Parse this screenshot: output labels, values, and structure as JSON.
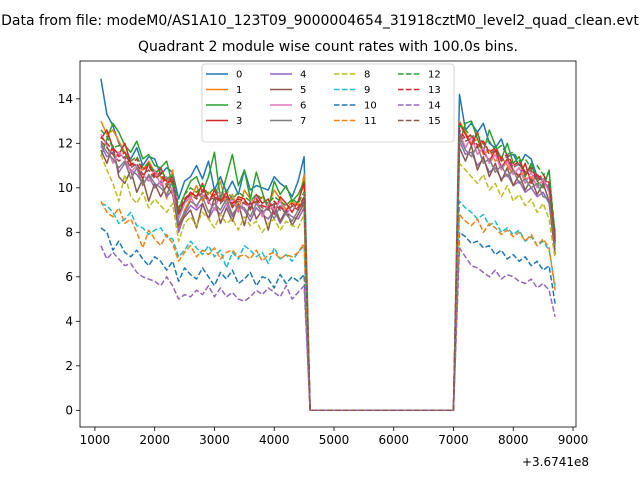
{
  "chart_data": {
    "type": "line",
    "suptitle": "Data from file: modeM0/AS1A10_123T09_9000004654_31918cztM0_level2_quad_clean.evt",
    "title": "Quadrant 2 module wise count rates with 100.0s bins.",
    "xlabel": "",
    "ylabel": "",
    "x_offset_label": "+3.6741e8",
    "xlim": [
      750,
      9050
    ],
    "ylim": [
      -0.75,
      15.7
    ],
    "xticks": [
      1000,
      2000,
      3000,
      4000,
      5000,
      6000,
      7000,
      8000,
      9000
    ],
    "yticks": [
      0,
      2,
      4,
      6,
      8,
      10,
      12,
      14
    ],
    "legend_position": "upper center",
    "gap": {
      "from": 4600,
      "to": 7000,
      "value": 0
    },
    "segment_a": {
      "start": 1100,
      "end": 4500,
      "step": 100
    },
    "segment_b": {
      "start": 7100,
      "end": 8700,
      "step": 100
    },
    "series": [
      {
        "name": "0",
        "color": "#1f77b4",
        "style": "solid",
        "a": [
          14.9,
          13.3,
          12.8,
          12.0,
          11.6,
          11.3,
          11.8,
          11.0,
          11.4,
          11.3,
          10.6,
          10.9,
          10.7,
          9.5,
          10.3,
          10.5,
          11.0,
          10.4,
          11.2,
          9.9,
          10.5,
          9.8,
          10.3,
          9.7,
          10.8,
          9.9,
          10.1,
          10.0,
          9.9,
          10.5,
          10.2,
          10.0,
          9.6,
          10.3,
          11.4
        ],
        "b": [
          14.2,
          12.6,
          12.9,
          12.5,
          12.9,
          12.0,
          11.8,
          12.2,
          11.4,
          11.5,
          11.0,
          11.5,
          11.3,
          10.5,
          10.3,
          10.0,
          8.0
        ]
      },
      {
        "name": "1",
        "color": "#ff7f0e",
        "style": "solid",
        "a": [
          13.0,
          12.4,
          12.6,
          12.1,
          11.6,
          11.1,
          11.0,
          10.8,
          11.2,
          10.7,
          10.5,
          9.5,
          10.8,
          8.1,
          9.0,
          9.5,
          10.1,
          9.4,
          9.8,
          9.6,
          10.3,
          9.2,
          9.7,
          9.0,
          9.9,
          9.5,
          9.3,
          9.6,
          9.2,
          9.9,
          9.5,
          9.0,
          9.4,
          9.2,
          10.6
        ],
        "b": [
          13.0,
          12.5,
          12.0,
          12.2,
          11.5,
          11.7,
          11.2,
          11.4,
          11.0,
          10.6,
          10.9,
          10.4,
          10.5,
          10.1,
          10.3,
          9.9,
          7.9
        ]
      },
      {
        "name": "2",
        "color": "#2ca02c",
        "style": "solid",
        "a": [
          11.4,
          12.2,
          12.9,
          12.5,
          11.9,
          11.6,
          12.1,
          11.3,
          11.5,
          11.0,
          10.9,
          11.2,
          10.1,
          9.0,
          9.7,
          10.3,
          10.5,
          9.8,
          10.5,
          11.6,
          9.5,
          10.5,
          11.5,
          10.1,
          10.8,
          9.5,
          10.7,
          9.8,
          9.0,
          10.3,
          9.7,
          10.1,
          9.4,
          9.7,
          10.3
        ],
        "b": [
          12.0,
          12.9,
          13.0,
          12.2,
          11.6,
          12.6,
          11.9,
          11.3,
          12.0,
          11.1,
          11.4,
          10.5,
          11.1,
          10.3,
          10.0,
          10.8,
          7.5
        ]
      },
      {
        "name": "3",
        "color": "#d62728",
        "style": "solid",
        "a": [
          12.2,
          12.6,
          11.8,
          11.5,
          12.0,
          11.1,
          11.0,
          10.4,
          11.1,
          10.6,
          10.9,
          10.3,
          10.5,
          8.8,
          9.4,
          9.8,
          9.6,
          10.2,
          9.3,
          9.9,
          9.4,
          9.8,
          9.1,
          9.6,
          9.5,
          9.0,
          9.7,
          9.3,
          9.5,
          8.8,
          9.6,
          9.3,
          8.9,
          9.4,
          10.2
        ],
        "b": [
          12.9,
          12.4,
          11.9,
          12.5,
          11.6,
          11.2,
          11.7,
          10.9,
          11.3,
          10.8,
          10.5,
          11.1,
          10.2,
          10.6,
          10.3,
          9.9,
          7.8
        ]
      },
      {
        "name": "4",
        "color": "#9467bd",
        "style": "solid",
        "a": [
          11.9,
          11.4,
          11.6,
          10.7,
          11.1,
          10.8,
          10.6,
          10.2,
          10.5,
          10.0,
          10.3,
          9.6,
          9.9,
          8.0,
          8.8,
          9.2,
          9.0,
          9.3,
          8.6,
          9.1,
          8.8,
          9.3,
          8.7,
          9.2,
          9.0,
          8.5,
          9.1,
          8.8,
          8.6,
          9.0,
          8.4,
          8.9,
          8.7,
          8.6,
          9.1
        ],
        "b": [
          12.1,
          11.5,
          11.6,
          11.0,
          11.3,
          10.7,
          10.9,
          10.4,
          10.6,
          10.1,
          10.3,
          9.8,
          10.0,
          9.6,
          9.8,
          9.3,
          7.2
        ]
      },
      {
        "name": "5",
        "color": "#8c564b",
        "style": "solid",
        "a": [
          11.7,
          11.1,
          11.9,
          10.5,
          10.2,
          10.8,
          9.8,
          10.4,
          9.4,
          10.2,
          9.6,
          10.1,
          9.7,
          8.3,
          8.7,
          9.0,
          8.2,
          9.3,
          8.6,
          9.6,
          8.4,
          9.1,
          8.5,
          9.3,
          8.3,
          9.4,
          8.6,
          9.0,
          8.1,
          9.2,
          8.5,
          9.0,
          8.3,
          8.8,
          9.3
        ],
        "b": [
          11.8,
          11.2,
          11.9,
          10.8,
          11.4,
          10.5,
          11.1,
          10.3,
          10.9,
          10.1,
          10.6,
          9.9,
          10.4,
          9.7,
          10.2,
          9.4,
          7.0
        ]
      },
      {
        "name": "6",
        "color": "#e377c2",
        "style": "solid",
        "a": [
          12.4,
          11.9,
          11.1,
          11.6,
          11.3,
          10.7,
          11.0,
          10.6,
          10.3,
          10.8,
          10.1,
          10.5,
          9.8,
          8.6,
          9.3,
          9.6,
          9.1,
          9.7,
          9.4,
          9.0,
          9.8,
          9.2,
          9.5,
          8.9,
          9.4,
          9.1,
          9.6,
          8.7,
          9.3,
          9.0,
          9.4,
          8.8,
          9.2,
          9.0,
          9.6
        ],
        "b": [
          12.5,
          11.8,
          12.3,
          11.5,
          11.8,
          11.1,
          11.5,
          10.8,
          11.2,
          10.6,
          10.9,
          10.2,
          10.7,
          10.0,
          10.4,
          9.8,
          7.6
        ]
      },
      {
        "name": "7",
        "color": "#7f7f7f",
        "style": "solid",
        "a": [
          12.0,
          11.6,
          11.3,
          10.9,
          11.2,
          10.4,
          10.9,
          10.1,
          10.6,
          10.2,
          10.0,
          9.7,
          10.3,
          8.4,
          8.9,
          9.4,
          9.2,
          9.6,
          8.9,
          9.3,
          9.0,
          9.5,
          8.8,
          9.2,
          9.1,
          8.7,
          9.3,
          8.9,
          9.1,
          8.6,
          9.2,
          8.8,
          8.5,
          9.0,
          9.4
        ],
        "b": [
          12.3,
          11.7,
          11.4,
          11.9,
          11.1,
          11.3,
          10.7,
          11.0,
          10.5,
          10.8,
          10.2,
          10.4,
          10.0,
          10.2,
          9.6,
          9.5,
          7.4
        ]
      },
      {
        "name": "8",
        "color": "#bcbd22",
        "style": "dashed",
        "a": [
          11.5,
          10.8,
          10.2,
          9.4,
          10.6,
          9.6,
          9.3,
          9.8,
          9.1,
          9.5,
          9.2,
          8.9,
          9.3,
          7.6,
          8.4,
          8.7,
          8.3,
          8.9,
          8.6,
          8.2,
          8.8,
          8.4,
          8.6,
          8.1,
          8.7,
          8.3,
          8.5,
          8.0,
          8.4,
          8.6,
          8.1,
          8.5,
          8.3,
          8.2,
          8.8
        ],
        "b": [
          11.1,
          10.8,
          10.5,
          10.2,
          10.6,
          9.9,
          10.2,
          9.6,
          10.1,
          9.4,
          9.7,
          9.2,
          9.5,
          8.9,
          9.3,
          8.6,
          6.8
        ]
      },
      {
        "name": "9",
        "color": "#17becf",
        "style": "dashed",
        "a": [
          9.3,
          9.2,
          8.9,
          8.4,
          8.6,
          8.9,
          8.3,
          8.2,
          7.9,
          8.1,
          8.2,
          7.8,
          7.7,
          6.9,
          7.2,
          7.6,
          7.3,
          7.0,
          7.4,
          6.9,
          7.2,
          6.4,
          7.1,
          6.8,
          7.4,
          7.2,
          6.9,
          7.1,
          6.6,
          7.3,
          6.8,
          7.0,
          6.7,
          7.1,
          7.4
        ],
        "b": [
          9.4,
          9.1,
          8.9,
          8.6,
          8.8,
          8.3,
          8.5,
          8.0,
          8.2,
          7.9,
          8.1,
          7.6,
          7.8,
          7.4,
          7.6,
          7.2,
          5.6
        ]
      },
      {
        "name": "10",
        "color": "#1f77b4",
        "style": "dashed",
        "a": [
          8.2,
          8.0,
          7.2,
          7.6,
          7.1,
          6.9,
          7.2,
          6.8,
          6.5,
          6.9,
          6.7,
          6.3,
          6.7,
          5.8,
          6.4,
          6.1,
          5.9,
          6.4,
          6.0,
          5.6,
          6.2,
          5.9,
          6.3,
          5.7,
          5.9,
          6.2,
          5.6,
          6.0,
          5.9,
          5.5,
          6.1,
          5.7,
          6.0,
          5.8,
          6.1
        ],
        "b": [
          8.0,
          7.8,
          7.5,
          7.6,
          7.3,
          7.4,
          7.0,
          7.2,
          6.8,
          7.0,
          6.7,
          6.9,
          6.5,
          6.7,
          6.3,
          6.5,
          4.8
        ]
      },
      {
        "name": "11",
        "color": "#ff7f0e",
        "style": "dashed",
        "a": [
          9.4,
          8.9,
          8.7,
          9.1,
          8.4,
          8.6,
          8.0,
          7.3,
          8.1,
          7.7,
          7.4,
          7.9,
          7.5,
          6.7,
          7.1,
          7.4,
          6.9,
          7.2,
          7.0,
          7.3,
          6.8,
          7.1,
          7.2,
          6.9,
          7.0,
          6.8,
          7.2,
          6.7,
          7.0,
          7.1,
          6.8,
          7.0,
          6.9,
          7.1,
          7.5
        ],
        "b": [
          8.8,
          8.5,
          8.3,
          8.6,
          8.0,
          8.4,
          8.2,
          7.9,
          8.1,
          7.8,
          8.0,
          7.6,
          7.9,
          7.4,
          7.7,
          7.3,
          5.4
        ]
      },
      {
        "name": "12",
        "color": "#2ca02c",
        "style": "dashed",
        "a": [
          12.6,
          12.3,
          11.8,
          11.9,
          11.5,
          11.2,
          11.4,
          10.9,
          11.1,
          10.7,
          10.8,
          10.4,
          10.6,
          9.1,
          9.7,
          10.0,
          9.8,
          10.1,
          9.7,
          10.0,
          9.6,
          9.9,
          9.5,
          9.8,
          9.6,
          9.4,
          9.7,
          9.5,
          9.3,
          9.6,
          9.4,
          9.2,
          9.5,
          9.3,
          9.8
        ],
        "b": [
          12.8,
          12.6,
          12.3,
          12.4,
          12.0,
          12.1,
          11.7,
          11.9,
          11.5,
          11.6,
          11.2,
          11.3,
          10.9,
          11.0,
          10.6,
          10.7,
          7.9
        ]
      },
      {
        "name": "13",
        "color": "#d62728",
        "style": "dashed",
        "a": [
          12.3,
          12.0,
          11.7,
          11.4,
          11.6,
          11.0,
          11.3,
          10.8,
          11.0,
          10.5,
          10.7,
          10.2,
          10.4,
          8.9,
          9.5,
          9.8,
          9.6,
          9.9,
          9.5,
          9.7,
          9.4,
          9.7,
          9.3,
          9.5,
          9.4,
          9.2,
          9.5,
          9.2,
          9.1,
          9.4,
          9.1,
          9.0,
          9.3,
          9.1,
          9.6
        ],
        "b": [
          12.6,
          12.2,
          12.4,
          11.9,
          12.1,
          11.6,
          11.8,
          11.3,
          11.5,
          11.0,
          11.2,
          10.7,
          10.9,
          10.4,
          10.6,
          10.2,
          7.7
        ]
      },
      {
        "name": "14",
        "color": "#9467bd",
        "style": "dashed",
        "a": [
          7.4,
          6.8,
          7.1,
          6.8,
          6.5,
          6.6,
          6.2,
          6.0,
          5.9,
          5.8,
          5.6,
          6.0,
          5.6,
          5.0,
          5.2,
          5.1,
          5.4,
          5.2,
          5.6,
          5.1,
          5.5,
          5.1,
          5.3,
          5.0,
          4.9,
          5.1,
          5.4,
          5.2,
          5.5,
          5.3,
          5.1,
          5.6,
          5.0,
          5.3,
          5.6
        ],
        "b": [
          7.3,
          6.9,
          6.5,
          6.4,
          6.2,
          6.0,
          6.3,
          5.9,
          6.1,
          6.0,
          5.8,
          5.7,
          5.9,
          5.5,
          5.7,
          5.4,
          4.2
        ]
      },
      {
        "name": "15",
        "color": "#8c564b",
        "style": "dashed",
        "a": [
          12.1,
          11.8,
          11.5,
          11.2,
          11.4,
          10.9,
          11.1,
          10.6,
          10.8,
          10.4,
          10.6,
          10.1,
          10.3,
          8.8,
          9.4,
          9.7,
          9.5,
          9.8,
          9.4,
          9.6,
          9.3,
          9.6,
          9.2,
          9.4,
          9.3,
          9.1,
          9.4,
          9.1,
          9.0,
          9.3,
          9.0,
          8.9,
          9.2,
          9.0,
          9.5
        ],
        "b": [
          12.4,
          12.1,
          12.2,
          11.8,
          12.0,
          11.5,
          11.7,
          11.2,
          11.4,
          10.9,
          11.1,
          10.6,
          10.8,
          10.3,
          10.5,
          10.1,
          7.6
        ]
      }
    ]
  }
}
